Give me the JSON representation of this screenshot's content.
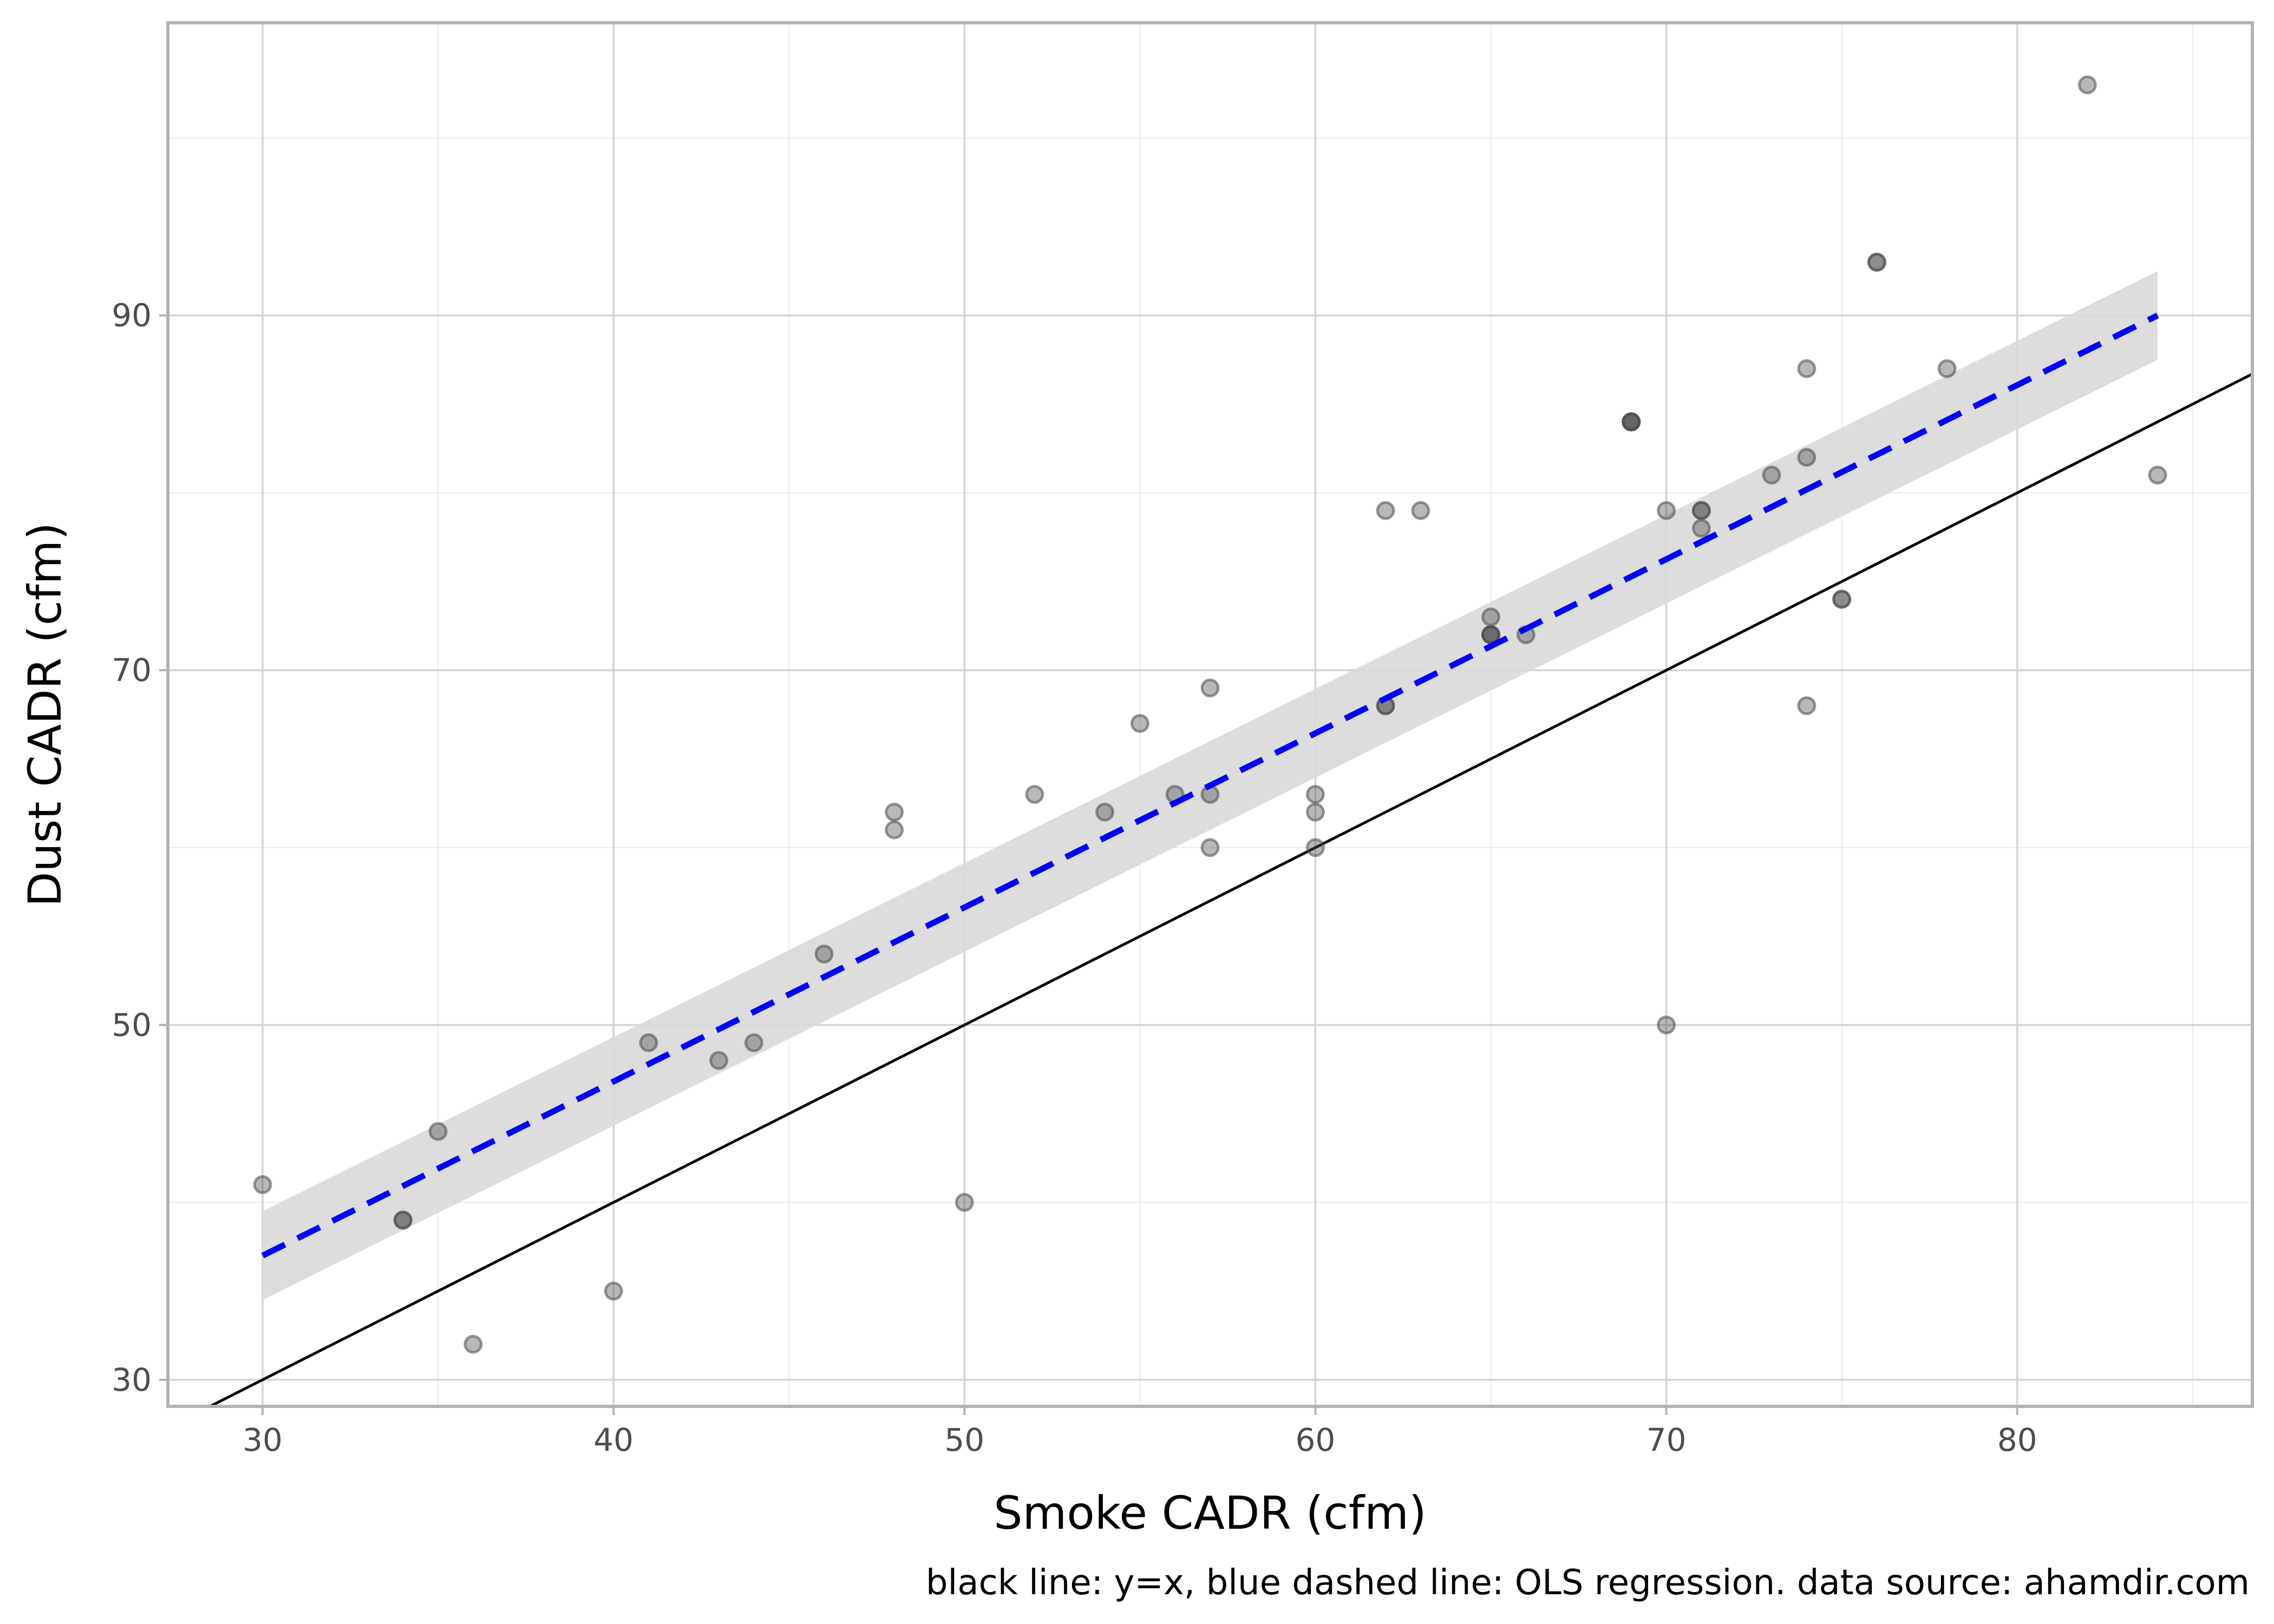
{
  "chart_data": {
    "type": "scatter",
    "xlabel": "Smoke CADR (cfm)",
    "ylabel": "Dust CADR (cfm)",
    "caption": "black line: y=x, blue dashed line: OLS regression. data source: ahamdir.com",
    "xlim": [
      27.3,
      86.7
    ],
    "ylim": [
      28.5,
      106.5
    ],
    "x_ticks": [
      30,
      40,
      50,
      60,
      70,
      80
    ],
    "y_ticks": [
      30,
      50,
      70,
      90
    ],
    "grid": true,
    "legend": "none",
    "points": [
      [
        30,
        41
      ],
      [
        34,
        39
      ],
      [
        34,
        39
      ],
      [
        35,
        44
      ],
      [
        36,
        32
      ],
      [
        40,
        35
      ],
      [
        41,
        49
      ],
      [
        43,
        48
      ],
      [
        44,
        49
      ],
      [
        46,
        54
      ],
      [
        48,
        62
      ],
      [
        48,
        61
      ],
      [
        50,
        40
      ],
      [
        52,
        63
      ],
      [
        54,
        62
      ],
      [
        55,
        67
      ],
      [
        56,
        63
      ],
      [
        57,
        69
      ],
      [
        57,
        63
      ],
      [
        57,
        60
      ],
      [
        60,
        63
      ],
      [
        60,
        62
      ],
      [
        60,
        60
      ],
      [
        62,
        79
      ],
      [
        62,
        68
      ],
      [
        62,
        68
      ],
      [
        63,
        79
      ],
      [
        65,
        73
      ],
      [
        65,
        72
      ],
      [
        65,
        72
      ],
      [
        65,
        72
      ],
      [
        66,
        72
      ],
      [
        69,
        84
      ],
      [
        69,
        84
      ],
      [
        69,
        84
      ],
      [
        69,
        84
      ],
      [
        70,
        79
      ],
      [
        70,
        50
      ],
      [
        71,
        79
      ],
      [
        71,
        79
      ],
      [
        71,
        78
      ],
      [
        73,
        81
      ],
      [
        74,
        87
      ],
      [
        74,
        82
      ],
      [
        74,
        68
      ],
      [
        75,
        74
      ],
      [
        75,
        74
      ],
      [
        76,
        93
      ],
      [
        76,
        93
      ],
      [
        78,
        87
      ],
      [
        82,
        103
      ],
      [
        84,
        81
      ]
    ],
    "reference_line": {
      "name": "y=x",
      "slope": 1,
      "intercept": 0,
      "color": "#000000"
    },
    "regression": {
      "name": "OLS regression",
      "x_range": [
        30,
        84
      ],
      "y_start": 37.0,
      "y_end": 90.0,
      "ci_halfwidth": 2.5,
      "color": "#0000ff",
      "ci_color": "#d9d9d9"
    },
    "point_color": "#4d4d4d"
  }
}
